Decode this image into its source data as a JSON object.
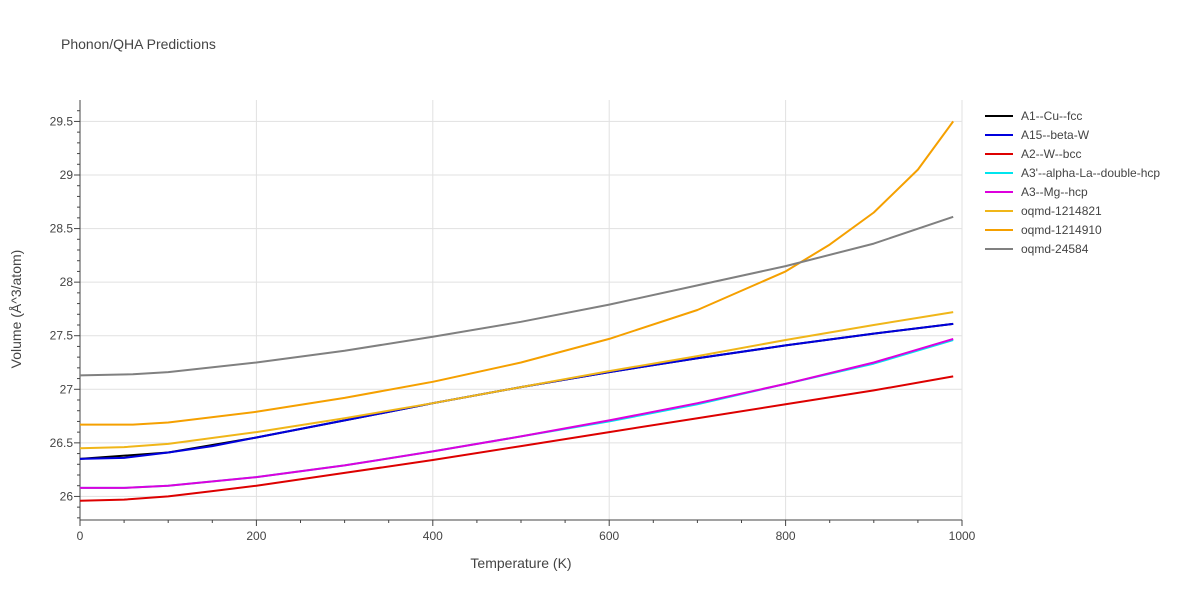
{
  "chart_data": {
    "type": "line",
    "title": "Phonon/QHA Predictions",
    "xlabel": "Temperature (K)",
    "ylabel": "Volume (Å^3/atom)",
    "xlim": [
      0,
      1000
    ],
    "ylim": [
      25.78,
      29.7
    ],
    "xticks": [
      0,
      200,
      400,
      600,
      800,
      1000
    ],
    "xtick_labels": [
      "0",
      "200",
      "400",
      "600",
      "800",
      "1000"
    ],
    "yticks": [
      26,
      26.5,
      27,
      27.5,
      28,
      28.5,
      29,
      29.5
    ],
    "ytick_labels": [
      "26",
      "26.5",
      "27",
      "27.5",
      "28",
      "28.5",
      "29",
      "29.5"
    ],
    "grid": true,
    "legend_position": "right",
    "series": [
      {
        "name": "A1--Cu--fcc",
        "color": "#000000",
        "x": [
          0,
          100,
          200,
          300,
          400,
          500,
          600,
          700,
          800,
          900,
          990
        ],
        "y": [
          26.35,
          26.41,
          26.55,
          26.71,
          26.87,
          27.02,
          27.16,
          27.29,
          27.41,
          27.52,
          27.61
        ]
      },
      {
        "name": "A15--beta-W",
        "color": "#0000dd",
        "x": [
          0,
          50,
          100,
          150,
          200,
          300,
          400,
          500,
          600,
          700,
          800,
          900,
          990
        ],
        "y": [
          26.35,
          26.36,
          26.41,
          26.47,
          26.55,
          26.71,
          26.87,
          27.02,
          27.16,
          27.29,
          27.41,
          27.52,
          27.61
        ]
      },
      {
        "name": "A2--W--bcc",
        "color": "#dd0000",
        "x": [
          0,
          50,
          100,
          150,
          200,
          300,
          400,
          500,
          600,
          700,
          800,
          900,
          990
        ],
        "y": [
          25.96,
          25.97,
          26.0,
          26.05,
          26.1,
          26.22,
          26.34,
          26.47,
          26.6,
          26.73,
          26.86,
          26.99,
          27.12
        ]
      },
      {
        "name": "A3'--alpha-La--double-hcp",
        "color": "#00e5ee",
        "x": [
          0,
          50,
          100,
          200,
          300,
          400,
          500,
          600,
          700,
          800,
          900,
          990
        ],
        "y": [
          26.08,
          26.08,
          26.1,
          26.18,
          26.29,
          26.42,
          26.56,
          26.7,
          26.86,
          27.05,
          27.24,
          27.46
        ]
      },
      {
        "name": "A3--Mg--hcp",
        "color": "#dd00dd",
        "x": [
          0,
          50,
          100,
          200,
          300,
          400,
          500,
          600,
          700,
          800,
          900,
          990
        ],
        "y": [
          26.08,
          26.08,
          26.1,
          26.18,
          26.29,
          26.42,
          26.56,
          26.71,
          26.87,
          27.05,
          27.25,
          27.47
        ]
      },
      {
        "name": "oqmd-1214821",
        "color": "#f0b619",
        "x": [
          0,
          50,
          100,
          200,
          300,
          400,
          500,
          600,
          700,
          800,
          900,
          990
        ],
        "y": [
          26.45,
          26.46,
          26.49,
          26.6,
          26.73,
          26.87,
          27.02,
          27.17,
          27.31,
          27.46,
          27.6,
          27.72
        ]
      },
      {
        "name": "oqmd-1214910",
        "color": "#f5a000",
        "x": [
          0,
          60,
          100,
          200,
          300,
          400,
          500,
          600,
          700,
          800,
          850,
          900,
          950,
          990
        ],
        "y": [
          26.67,
          26.67,
          26.69,
          26.79,
          26.92,
          27.07,
          27.25,
          27.47,
          27.74,
          28.1,
          28.35,
          28.65,
          29.05,
          29.5
        ]
      },
      {
        "name": "oqmd-24584",
        "color": "#808080",
        "x": [
          0,
          60,
          100,
          200,
          300,
          400,
          500,
          600,
          700,
          800,
          900,
          990
        ],
        "y": [
          27.13,
          27.14,
          27.16,
          27.25,
          27.36,
          27.49,
          27.63,
          27.79,
          27.97,
          28.15,
          28.36,
          28.61
        ]
      }
    ]
  }
}
